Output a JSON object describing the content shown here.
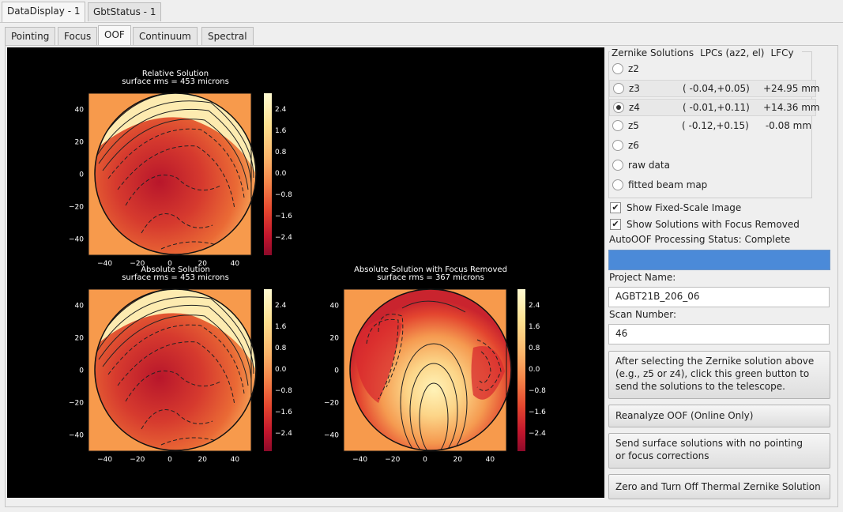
{
  "window_tabs": [
    {
      "label": "DataDisplay - 1",
      "active": true
    },
    {
      "label": "GbtStatus - 1",
      "active": false
    }
  ],
  "sub_tabs": [
    {
      "label": "Pointing",
      "active": false
    },
    {
      "label": "Focus",
      "active": false
    },
    {
      "label": "OOF",
      "active": true
    },
    {
      "label": "Continuum",
      "active": false
    },
    {
      "label": "Spectral Line",
      "active": false
    }
  ],
  "zernike": {
    "header": {
      "col1": "Zernike Solutions",
      "col2": "LPCs (az2, el)",
      "col3": "LFCy"
    },
    "options": [
      {
        "label": "z2",
        "lpc": "",
        "lfcy": "",
        "selected": false
      },
      {
        "label": "z3",
        "lpc": "( -0.04,+0.05)",
        "lfcy": "+24.95 mm",
        "selected": false
      },
      {
        "label": "z4",
        "lpc": "( -0.01,+0.11)",
        "lfcy": "+14.36 mm",
        "selected": true
      },
      {
        "label": "z5",
        "lpc": "( -0.12,+0.15)",
        "lfcy": " -0.08 mm",
        "selected": false
      },
      {
        "label": "z6",
        "lpc": "",
        "lfcy": "",
        "selected": false
      },
      {
        "label": "raw data",
        "lpc": "",
        "lfcy": "",
        "selected": false
      },
      {
        "label": "fitted beam map",
        "lpc": "",
        "lfcy": "",
        "selected": false
      }
    ]
  },
  "checkboxes": {
    "fixed_scale": {
      "label": "Show Fixed-Scale Image",
      "checked": true
    },
    "focus_removed": {
      "label": "Show Solutions with Focus Removed",
      "checked": true
    }
  },
  "status": {
    "label": "AutoOOF Processing Status: Complete",
    "progress": 1.0,
    "bar_color": "#4b8ad8"
  },
  "project": {
    "label": "Project Name:",
    "value": "AGBT21B_206_06"
  },
  "scan": {
    "label": "Scan Number:",
    "value": "46"
  },
  "buttons": {
    "send": "After selecting the Zernike solution above\n (e.g., z5 or z4), click this green button to\n send the solutions to the telescope.",
    "reanalyze": "Reanalyze OOF (Online Only)",
    "send_surface": "Send surface solutions with no pointing\n or focus corrections",
    "zero": "Zero and Turn Off Thermal Zernike Solution"
  },
  "plots": [
    {
      "title": "Relative Solution",
      "subtitle": "surface rms = 453 microns"
    },
    {
      "title": "Absolute Solution",
      "subtitle": "surface rms = 453 microns"
    },
    {
      "title": "Absolute Solution with Focus Removed",
      "subtitle": "surface rms = 367 microns"
    }
  ],
  "axis_ticks": {
    "x": [
      "−40",
      "−20",
      "0",
      "20",
      "40"
    ],
    "y": [
      "40",
      "20",
      "0",
      "−20",
      "−40"
    ]
  },
  "colorbar_ticks": [
    "2.4",
    "1.6",
    "0.8",
    "0.0",
    "−0.8",
    "−1.6",
    "−2.4"
  ],
  "colors": {
    "plot_bg": "#000000",
    "map_bg": "#f79a4c",
    "progress": "#4b8ad8"
  }
}
